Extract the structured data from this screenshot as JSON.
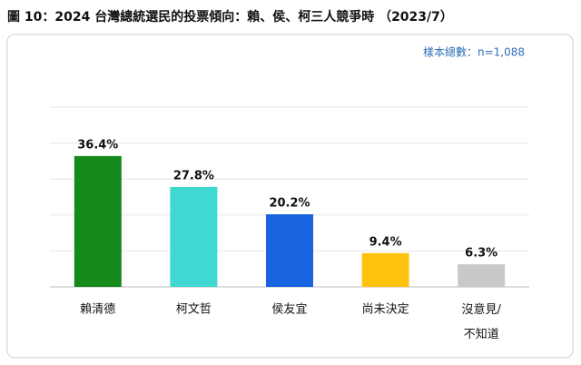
{
  "chart_data": {
    "type": "bar",
    "title": "圖 10：2024 台灣總統選民的投票傾向：賴、侯、柯三人競爭時 （2023/7）",
    "annotation": "樣本總數：n=1,088",
    "categories": [
      "賴清德",
      "柯文哲",
      "侯友宜",
      "尚未決定",
      "沒意見/不知道"
    ],
    "values": [
      36.4,
      27.8,
      20.2,
      9.4,
      6.3
    ],
    "value_labels": [
      "36.4%",
      "27.8%",
      "20.2%",
      "9.4%",
      "6.3%"
    ],
    "colors": [
      "#14891c",
      "#3fd9d2",
      "#1763e0",
      "#ffc20e",
      "#c9c9c9"
    ],
    "ylim": [
      0,
      50
    ],
    "yticks": [
      0,
      10,
      20,
      30,
      40,
      50
    ],
    "grid": true
  }
}
